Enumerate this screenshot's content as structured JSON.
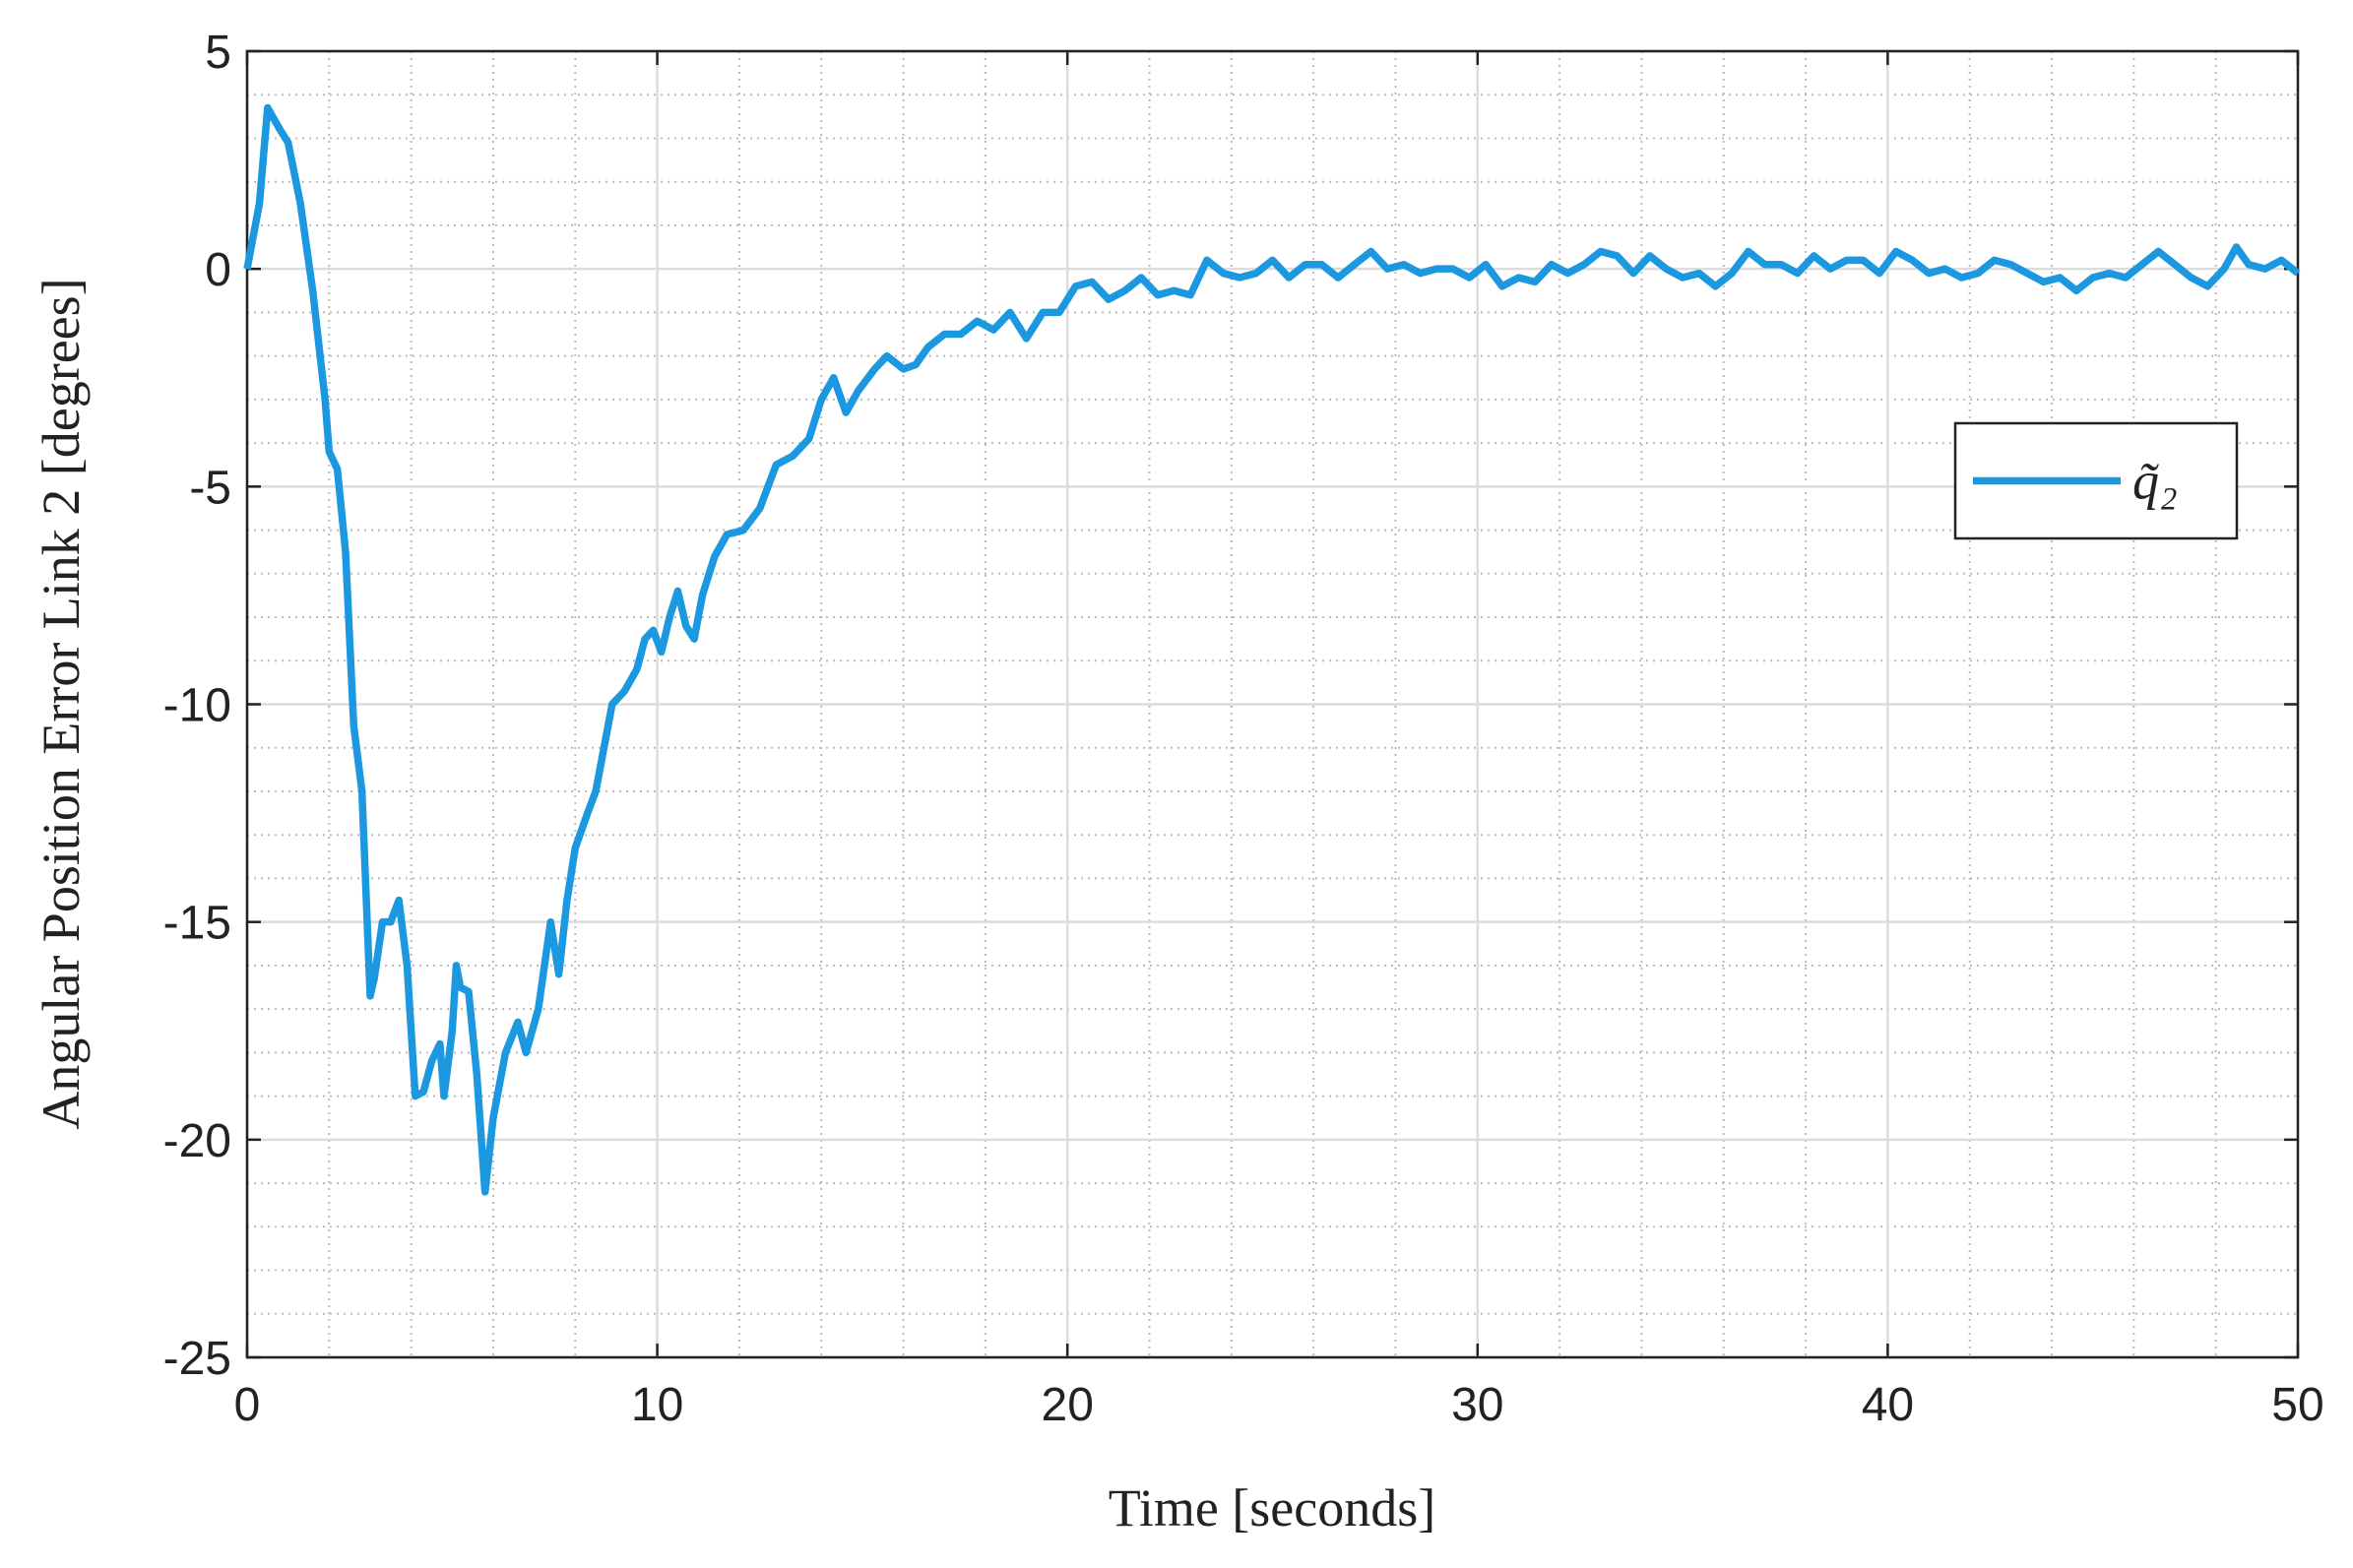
{
  "chart_data": {
    "type": "line",
    "xlabel": "Time [seconds]",
    "ylabel": "Angular Position Error Link 2 [degrees]",
    "x": [
      0,
      0.3,
      0.5,
      0.8,
      1,
      1.3,
      1.6,
      1.9,
      2.0,
      2.2,
      2.4,
      2.6,
      2.8,
      3.0,
      3.1,
      3.3,
      3.5,
      3.7,
      3.9,
      4.1,
      4.3,
      4.5,
      4.7,
      4.8,
      5.0,
      5.1,
      5.2,
      5.4,
      5.6,
      5.8,
      6.0,
      6.3,
      6.6,
      6.8,
      7.1,
      7.4,
      7.6,
      7.8,
      8.0,
      8.3,
      8.5,
      8.7,
      8.9,
      9.2,
      9.5,
      9.7,
      9.9,
      10.1,
      10.3,
      10.5,
      10.7,
      10.9,
      11.1,
      11.4,
      11.7,
      12.1,
      12.5,
      12.9,
      13.3,
      13.7,
      14.0,
      14.3,
      14.6,
      14.9,
      15.3,
      15.6,
      16.0,
      16.3,
      16.6,
      17.0,
      17.4,
      17.8,
      18.2,
      18.6,
      19.0,
      19.4,
      19.8,
      20.2,
      20.6,
      21.0,
      21.4,
      21.8,
      22.2,
      22.6,
      23.0,
      23.4,
      23.8,
      24.2,
      24.6,
      25.0,
      25.4,
      25.8,
      26.2,
      26.6,
      27.0,
      27.4,
      27.8,
      28.2,
      28.6,
      29.0,
      29.4,
      29.8,
      30.2,
      30.6,
      31.0,
      31.4,
      31.8,
      32.2,
      32.6,
      33.0,
      33.4,
      33.8,
      34.2,
      34.6,
      35.0,
      35.4,
      35.8,
      36.2,
      36.6,
      37.0,
      37.4,
      37.8,
      38.2,
      38.6,
      39.0,
      39.4,
      39.8,
      40.2,
      40.6,
      41.0,
      41.4,
      41.8,
      42.2,
      42.6,
      43.0,
      43.4,
      43.8,
      44.2,
      44.6,
      45.0,
      45.4,
      45.8,
      46.2,
      46.6,
      47.0,
      47.4,
      47.8,
      48.2,
      48.5,
      48.8,
      49.2,
      49.6,
      50
    ],
    "series": [
      {
        "name": "q̃₂",
        "color": "#1b98e0",
        "values": [
          0,
          1.5,
          3.7,
          3.2,
          2.9,
          1.5,
          -0.5,
          -3,
          -4.2,
          -4.6,
          -6.5,
          -10.5,
          -12,
          -16.7,
          -16.3,
          -15,
          -15,
          -14.5,
          -16,
          -19,
          -18.9,
          -18.2,
          -17.8,
          -19,
          -17.5,
          -16,
          -16.5,
          -16.6,
          -18.5,
          -21.2,
          -19.5,
          -18,
          -17.3,
          -18,
          -17,
          -15,
          -16.2,
          -14.5,
          -13.3,
          -12.5,
          -12,
          -11,
          -10,
          -9.7,
          -9.2,
          -8.5,
          -8.3,
          -8.8,
          -8.0,
          -7.4,
          -8.2,
          -8.5,
          -7.5,
          -6.6,
          -6.1,
          -6,
          -5.5,
          -4.5,
          -4.3,
          -3.9,
          -3,
          -2.5,
          -3.3,
          -2.8,
          -2.3,
          -2,
          -2.3,
          -2.2,
          -1.8,
          -1.5,
          -1.5,
          -1.2,
          -1.4,
          -1.0,
          -1.6,
          -1,
          -1,
          -0.4,
          -0.3,
          -0.7,
          -0.5,
          -0.2,
          -0.6,
          -0.5,
          -0.6,
          0.2,
          -0.1,
          -0.2,
          -0.1,
          0.2,
          -0.2,
          0.1,
          0.1,
          -0.2,
          0.1,
          0.4,
          0,
          0.1,
          -0.1,
          0,
          0,
          -0.2,
          0.1,
          -0.4,
          -0.2,
          -0.3,
          0.1,
          -0.1,
          0.1,
          0.4,
          0.3,
          -0.1,
          0.3,
          0,
          -0.2,
          -0.1,
          -0.4,
          -0.1,
          0.4,
          0.1,
          0.1,
          -0.1,
          0.3,
          0,
          0.2,
          0.2,
          -0.1,
          0.4,
          0.2,
          -0.1,
          0,
          -0.2,
          -0.1,
          0.2,
          0.1,
          -0.1,
          -0.3,
          -0.2,
          -0.5,
          -0.2,
          -0.1,
          -0.2,
          0.1,
          0.4,
          0.1,
          -0.2,
          -0.4,
          0,
          0.5,
          0.1,
          0,
          0.2,
          -0.1
        ]
      }
    ],
    "xlim": [
      0,
      50
    ],
    "xticks": [
      0,
      10,
      20,
      30,
      40,
      50
    ],
    "ylim": [
      -25,
      5
    ],
    "yticks": [
      -25,
      -20,
      -15,
      -10,
      -5,
      0,
      5
    ],
    "xminorticks": [
      2,
      4,
      6,
      8,
      12,
      14,
      16,
      18,
      22,
      24,
      26,
      28,
      32,
      34,
      36,
      38,
      42,
      44,
      46,
      48
    ],
    "yminorticks": [
      -24,
      -23,
      -22,
      -21,
      -19,
      -18,
      -17,
      -16,
      -14,
      -13,
      -12,
      -11,
      -9,
      -8,
      -7,
      -6,
      -4,
      -3,
      -2,
      -1,
      1,
      2,
      3,
      4
    ],
    "grid": true,
    "minor_grid": true,
    "legend": "upper right"
  }
}
